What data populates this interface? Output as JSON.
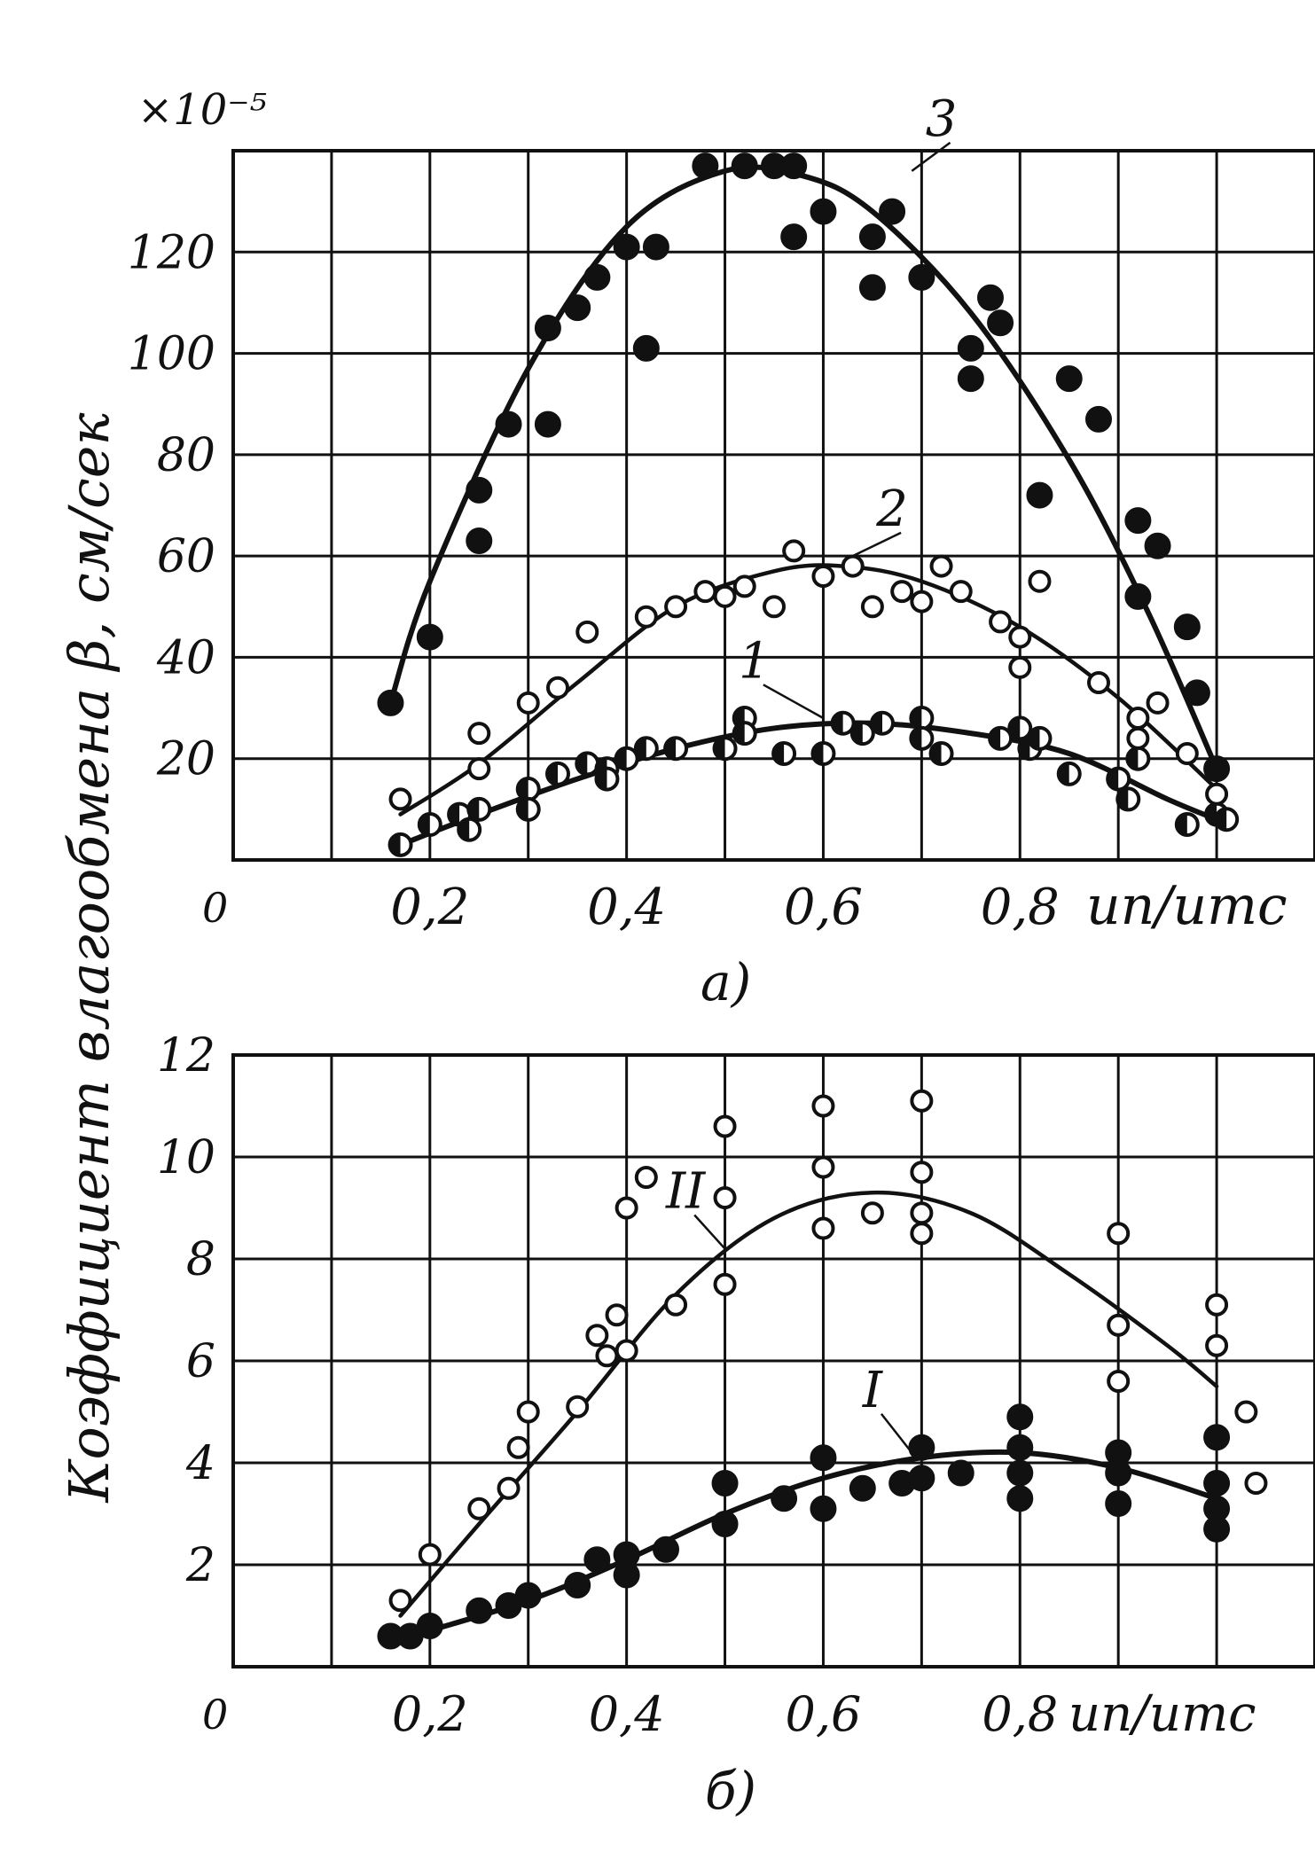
{
  "multiplier_label": "×10⁻⁵",
  "y_axis_label": "Коэффициент влагообмена β, см/сек",
  "chart_data": [
    {
      "panel_label": "а)",
      "type": "scatter",
      "xlabel": "uп/uтс",
      "xlim": [
        0,
        1.1
      ],
      "ylim": [
        0,
        140
      ],
      "x_ticks": [
        0.2,
        0.4,
        0.6,
        0.8
      ],
      "x_tick_labels": [
        "0,2",
        "0,4",
        "0,6",
        "0,8"
      ],
      "y_ticks": [
        20,
        40,
        60,
        80,
        100,
        120
      ],
      "y_tick_labels": [
        "20",
        "40",
        "60",
        "80",
        "100",
        "120"
      ],
      "origin_label": "0",
      "grid": true,
      "series": [
        {
          "name": "1",
          "marker": "half-filled",
          "points": [
            [
              0.17,
              3
            ],
            [
              0.2,
              7
            ],
            [
              0.23,
              9
            ],
            [
              0.24,
              6
            ],
            [
              0.25,
              10
            ],
            [
              0.3,
              14
            ],
            [
              0.3,
              10
            ],
            [
              0.33,
              17
            ],
            [
              0.36,
              19
            ],
            [
              0.38,
              18
            ],
            [
              0.38,
              16
            ],
            [
              0.4,
              20
            ],
            [
              0.42,
              22
            ],
            [
              0.45,
              22
            ],
            [
              0.5,
              22
            ],
            [
              0.52,
              28
            ],
            [
              0.52,
              25
            ],
            [
              0.56,
              21
            ],
            [
              0.6,
              21
            ],
            [
              0.62,
              27
            ],
            [
              0.64,
              25
            ],
            [
              0.66,
              27
            ],
            [
              0.7,
              28
            ],
            [
              0.7,
              24
            ],
            [
              0.72,
              21
            ],
            [
              0.78,
              24
            ],
            [
              0.8,
              26
            ],
            [
              0.81,
              22
            ],
            [
              0.82,
              24
            ],
            [
              0.85,
              17
            ],
            [
              0.9,
              16
            ],
            [
              0.91,
              12
            ],
            [
              0.92,
              20
            ],
            [
              0.97,
              7
            ],
            [
              1.0,
              9
            ],
            [
              1.01,
              8
            ]
          ],
          "curve": [
            [
              0.17,
              3
            ],
            [
              0.25,
              9
            ],
            [
              0.35,
              16
            ],
            [
              0.45,
              22
            ],
            [
              0.55,
              26
            ],
            [
              0.65,
              27
            ],
            [
              0.75,
              25
            ],
            [
              0.85,
              21
            ],
            [
              0.95,
              12
            ],
            [
              1.0,
              8
            ]
          ]
        },
        {
          "name": "2",
          "marker": "open",
          "points": [
            [
              0.17,
              12
            ],
            [
              0.25,
              18
            ],
            [
              0.25,
              25
            ],
            [
              0.3,
              31
            ],
            [
              0.33,
              34
            ],
            [
              0.36,
              45
            ],
            [
              0.42,
              48
            ],
            [
              0.45,
              50
            ],
            [
              0.48,
              53
            ],
            [
              0.5,
              52
            ],
            [
              0.52,
              54
            ],
            [
              0.55,
              50
            ],
            [
              0.57,
              61
            ],
            [
              0.6,
              56
            ],
            [
              0.63,
              58
            ],
            [
              0.65,
              50
            ],
            [
              0.68,
              53
            ],
            [
              0.7,
              51
            ],
            [
              0.72,
              58
            ],
            [
              0.74,
              53
            ],
            [
              0.78,
              47
            ],
            [
              0.8,
              44
            ],
            [
              0.8,
              38
            ],
            [
              0.82,
              55
            ],
            [
              0.88,
              35
            ],
            [
              0.92,
              28
            ],
            [
              0.92,
              24
            ],
            [
              0.94,
              31
            ],
            [
              0.97,
              21
            ],
            [
              1.0,
              13
            ]
          ],
          "curve": [
            [
              0.17,
              9
            ],
            [
              0.25,
              19
            ],
            [
              0.35,
              35
            ],
            [
              0.45,
              50
            ],
            [
              0.55,
              57
            ],
            [
              0.62,
              58
            ],
            [
              0.7,
              55
            ],
            [
              0.8,
              46
            ],
            [
              0.9,
              32
            ],
            [
              1.0,
              14
            ]
          ]
        },
        {
          "name": "3",
          "marker": "filled",
          "points": [
            [
              0.16,
              31
            ],
            [
              0.2,
              44
            ],
            [
              0.25,
              73
            ],
            [
              0.25,
              63
            ],
            [
              0.28,
              86
            ],
            [
              0.32,
              105
            ],
            [
              0.32,
              86
            ],
            [
              0.35,
              109
            ],
            [
              0.37,
              115
            ],
            [
              0.4,
              121
            ],
            [
              0.42,
              101
            ],
            [
              0.43,
              121
            ],
            [
              0.48,
              137
            ],
            [
              0.52,
              137
            ],
            [
              0.55,
              137
            ],
            [
              0.57,
              137
            ],
            [
              0.57,
              123
            ],
            [
              0.6,
              128
            ],
            [
              0.65,
              123
            ],
            [
              0.65,
              113
            ],
            [
              0.67,
              128
            ],
            [
              0.7,
              115
            ],
            [
              0.75,
              101
            ],
            [
              0.75,
              95
            ],
            [
              0.77,
              111
            ],
            [
              0.78,
              106
            ],
            [
              0.82,
              72
            ],
            [
              0.85,
              95
            ],
            [
              0.88,
              87
            ],
            [
              0.92,
              67
            ],
            [
              0.92,
              52
            ],
            [
              0.94,
              62
            ],
            [
              0.97,
              46
            ],
            [
              0.98,
              33
            ],
            [
              1.0,
              18
            ]
          ],
          "curve": [
            [
              0.16,
              31
            ],
            [
              0.2,
              55
            ],
            [
              0.3,
              97
            ],
            [
              0.4,
              125
            ],
            [
              0.5,
              136
            ],
            [
              0.58,
              135
            ],
            [
              0.65,
              128
            ],
            [
              0.75,
              108
            ],
            [
              0.85,
              79
            ],
            [
              0.93,
              49
            ],
            [
              1.0,
              18
            ]
          ]
        }
      ]
    },
    {
      "panel_label": "б)",
      "type": "scatter",
      "xlabel": "uп/uтс",
      "xlim": [
        0,
        1.1
      ],
      "ylim": [
        0,
        12
      ],
      "x_ticks": [
        0.2,
        0.4,
        0.6,
        0.8
      ],
      "x_tick_labels": [
        "0,2",
        "0,4",
        "0,6",
        "0,8"
      ],
      "y_ticks": [
        2,
        4,
        6,
        8,
        10,
        12
      ],
      "y_tick_labels": [
        "2",
        "4",
        "6",
        "8",
        "10",
        "12"
      ],
      "origin_label": "0",
      "grid": true,
      "series": [
        {
          "name": "I",
          "marker": "filled",
          "points": [
            [
              0.16,
              0.6
            ],
            [
              0.18,
              0.6
            ],
            [
              0.2,
              0.8
            ],
            [
              0.25,
              1.1
            ],
            [
              0.28,
              1.2
            ],
            [
              0.3,
              1.4
            ],
            [
              0.35,
              1.6
            ],
            [
              0.37,
              2.1
            ],
            [
              0.4,
              2.2
            ],
            [
              0.4,
              1.8
            ],
            [
              0.44,
              2.3
            ],
            [
              0.5,
              3.6
            ],
            [
              0.5,
              2.8
            ],
            [
              0.56,
              3.3
            ],
            [
              0.6,
              4.1
            ],
            [
              0.6,
              3.1
            ],
            [
              0.64,
              3.5
            ],
            [
              0.68,
              3.6
            ],
            [
              0.7,
              4.3
            ],
            [
              0.7,
              3.7
            ],
            [
              0.74,
              3.8
            ],
            [
              0.8,
              4.9
            ],
            [
              0.8,
              4.3
            ],
            [
              0.8,
              3.8
            ],
            [
              0.8,
              3.3
            ],
            [
              0.9,
              4.2
            ],
            [
              0.9,
              3.8
            ],
            [
              0.9,
              3.2
            ],
            [
              1.0,
              4.5
            ],
            [
              1.0,
              3.6
            ],
            [
              1.0,
              3.1
            ],
            [
              1.0,
              2.7
            ]
          ],
          "curve": [
            [
              0.18,
              0.6
            ],
            [
              0.3,
              1.3
            ],
            [
              0.4,
              2.1
            ],
            [
              0.5,
              3.0
            ],
            [
              0.6,
              3.7
            ],
            [
              0.7,
              4.1
            ],
            [
              0.8,
              4.2
            ],
            [
              0.9,
              3.9
            ],
            [
              1.0,
              3.3
            ]
          ]
        },
        {
          "name": "II",
          "marker": "open",
          "points": [
            [
              0.17,
              1.3
            ],
            [
              0.2,
              2.2
            ],
            [
              0.25,
              3.1
            ],
            [
              0.28,
              3.5
            ],
            [
              0.29,
              4.3
            ],
            [
              0.3,
              5.0
            ],
            [
              0.35,
              5.1
            ],
            [
              0.37,
              6.5
            ],
            [
              0.38,
              6.1
            ],
            [
              0.39,
              6.9
            ],
            [
              0.4,
              6.2
            ],
            [
              0.4,
              9.0
            ],
            [
              0.42,
              9.6
            ],
            [
              0.45,
              7.1
            ],
            [
              0.5,
              10.6
            ],
            [
              0.5,
              9.2
            ],
            [
              0.5,
              7.5
            ],
            [
              0.6,
              11.0
            ],
            [
              0.6,
              9.8
            ],
            [
              0.6,
              8.6
            ],
            [
              0.65,
              8.9
            ],
            [
              0.7,
              11.1
            ],
            [
              0.7,
              9.7
            ],
            [
              0.7,
              8.9
            ],
            [
              0.7,
              8.5
            ],
            [
              0.9,
              8.5
            ],
            [
              0.9,
              6.7
            ],
            [
              0.9,
              5.6
            ],
            [
              1.0,
              7.1
            ],
            [
              1.0,
              6.3
            ],
            [
              1.03,
              5.0
            ],
            [
              1.04,
              3.6
            ]
          ],
          "curve": [
            [
              0.17,
              1.0
            ],
            [
              0.25,
              2.8
            ],
            [
              0.35,
              5.0
            ],
            [
              0.45,
              7.3
            ],
            [
              0.55,
              8.8
            ],
            [
              0.65,
              9.3
            ],
            [
              0.75,
              8.9
            ],
            [
              0.85,
              7.7
            ],
            [
              0.95,
              6.3
            ],
            [
              1.0,
              5.5
            ]
          ]
        }
      ]
    }
  ]
}
